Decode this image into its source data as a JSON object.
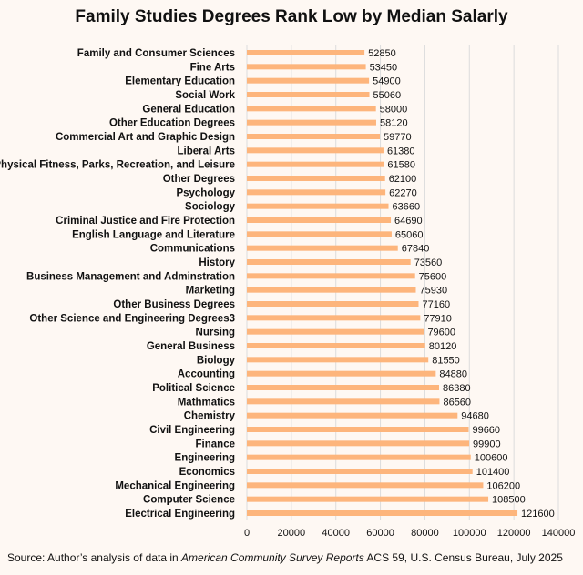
{
  "chart_data": {
    "type": "bar",
    "orientation": "horizontal",
    "title": "Family Studies Degrees Rank Low by Median Salarly",
    "xlabel": "",
    "ylabel": "",
    "xlim": [
      0,
      140000
    ],
    "xticks": [
      0,
      20000,
      40000,
      60000,
      80000,
      100000,
      120000,
      140000
    ],
    "grid": true,
    "bar_color": "#fdb57c",
    "categories": [
      "Family and Consumer Sciences",
      "Fine Arts",
      "Elementary Education",
      "Social Work",
      "General Education",
      "Other Education Degrees",
      "Commercial Art and Graphic Design",
      "Liberal Arts",
      "Physical Fitness, Parks, Recreation, and Leisure",
      "Other Degrees",
      "Psychology",
      "Sociology",
      "Criminal Justice and Fire Protection",
      "English Language and Literature",
      "Communications",
      "History",
      "Business Management and Adminstration",
      "Marketing",
      "Other Business Degrees",
      "Other Science and Engineering Degrees3",
      "Nursing",
      "General Business",
      "Biology",
      "Accounting",
      "Political Science",
      "Mathmatics",
      "Chemistry",
      "Civil Engineering",
      "Finance",
      "Engineering",
      "Economics",
      "Mechanical Engineering",
      "Computer Science",
      "Electrical Engineering"
    ],
    "values": [
      52850,
      53450,
      54900,
      55060,
      58000,
      58120,
      59770,
      61380,
      61580,
      62100,
      62270,
      63660,
      64690,
      65060,
      67840,
      73560,
      75600,
      75930,
      77160,
      77910,
      79600,
      80120,
      81550,
      84880,
      86380,
      86560,
      94680,
      99660,
      99900,
      100600,
      101400,
      106200,
      108500,
      121600
    ]
  },
  "source": {
    "prefix": "Source: Author’s analysis of data in ",
    "italic": "American Community Survey Reports",
    "suffix": " ACS 59, U.S. Census Bureau, July 2025"
  }
}
